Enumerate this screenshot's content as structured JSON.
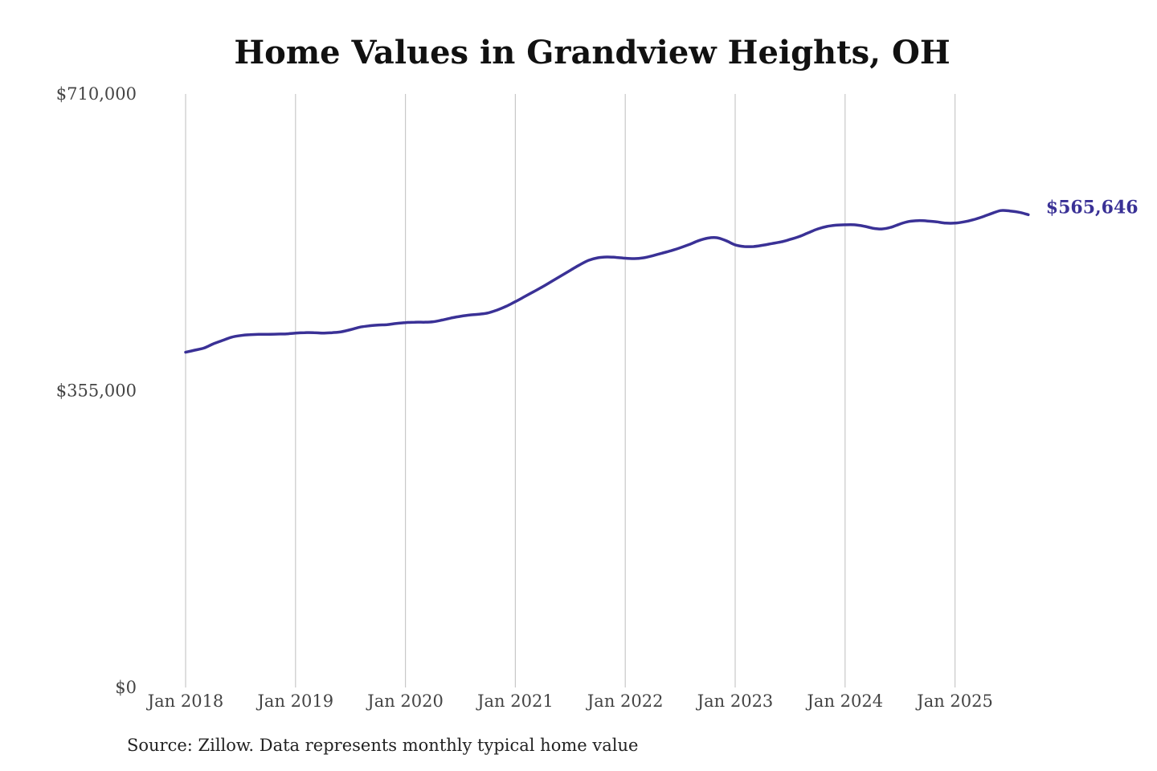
{
  "chart_data": {
    "type": "line",
    "title": "Home Values in Grandview Heights, OH",
    "source": "Source: Zillow. Data represents monthly typical home value",
    "x_start": "Jan 2018",
    "x_step": "month",
    "x_ticks": [
      "Jan 2018",
      "Jan 2019",
      "Jan 2020",
      "Jan 2021",
      "Jan 2022",
      "Jan 2023",
      "Jan 2024",
      "Jan 2025"
    ],
    "y_ticks": [
      {
        "value": 0,
        "label": "$0"
      },
      {
        "value": 355000,
        "label": "$355,000"
      },
      {
        "value": 710000,
        "label": "$710,000"
      }
    ],
    "ylim": [
      0,
      710000
    ],
    "grid": "vertical",
    "line_color": "#3a3196",
    "series": [
      {
        "values": [
          401000,
          403500,
          406000,
          411000,
          415000,
          419000,
          421000,
          422000,
          422500,
          422500,
          422700,
          423000,
          424000,
          424500,
          424500,
          424000,
          424500,
          425500,
          428000,
          431000,
          432500,
          433500,
          434000,
          435500,
          436500,
          437000,
          437000,
          437500,
          439500,
          442000,
          444000,
          445500,
          446500,
          448000,
          451500,
          456000,
          461500,
          467500,
          473500,
          479500,
          486000,
          492500,
          499000,
          505500,
          511000,
          514000,
          515000,
          514500,
          513500,
          513000,
          514000,
          516500,
          519500,
          522500,
          526000,
          530000,
          534500,
          537500,
          538000,
          534500,
          529500,
          527500,
          527500,
          529000,
          531000,
          533000,
          536000,
          539500,
          544000,
          548500,
          551500,
          553000,
          553500,
          553500,
          552000,
          549500,
          548500,
          550500,
          554500,
          557500,
          558500,
          558000,
          557000,
          555500,
          555500,
          557000,
          559500,
          563000,
          567000,
          570500,
          570000,
          568500,
          565646
        ]
      }
    ],
    "end_label": "$565,646"
  }
}
